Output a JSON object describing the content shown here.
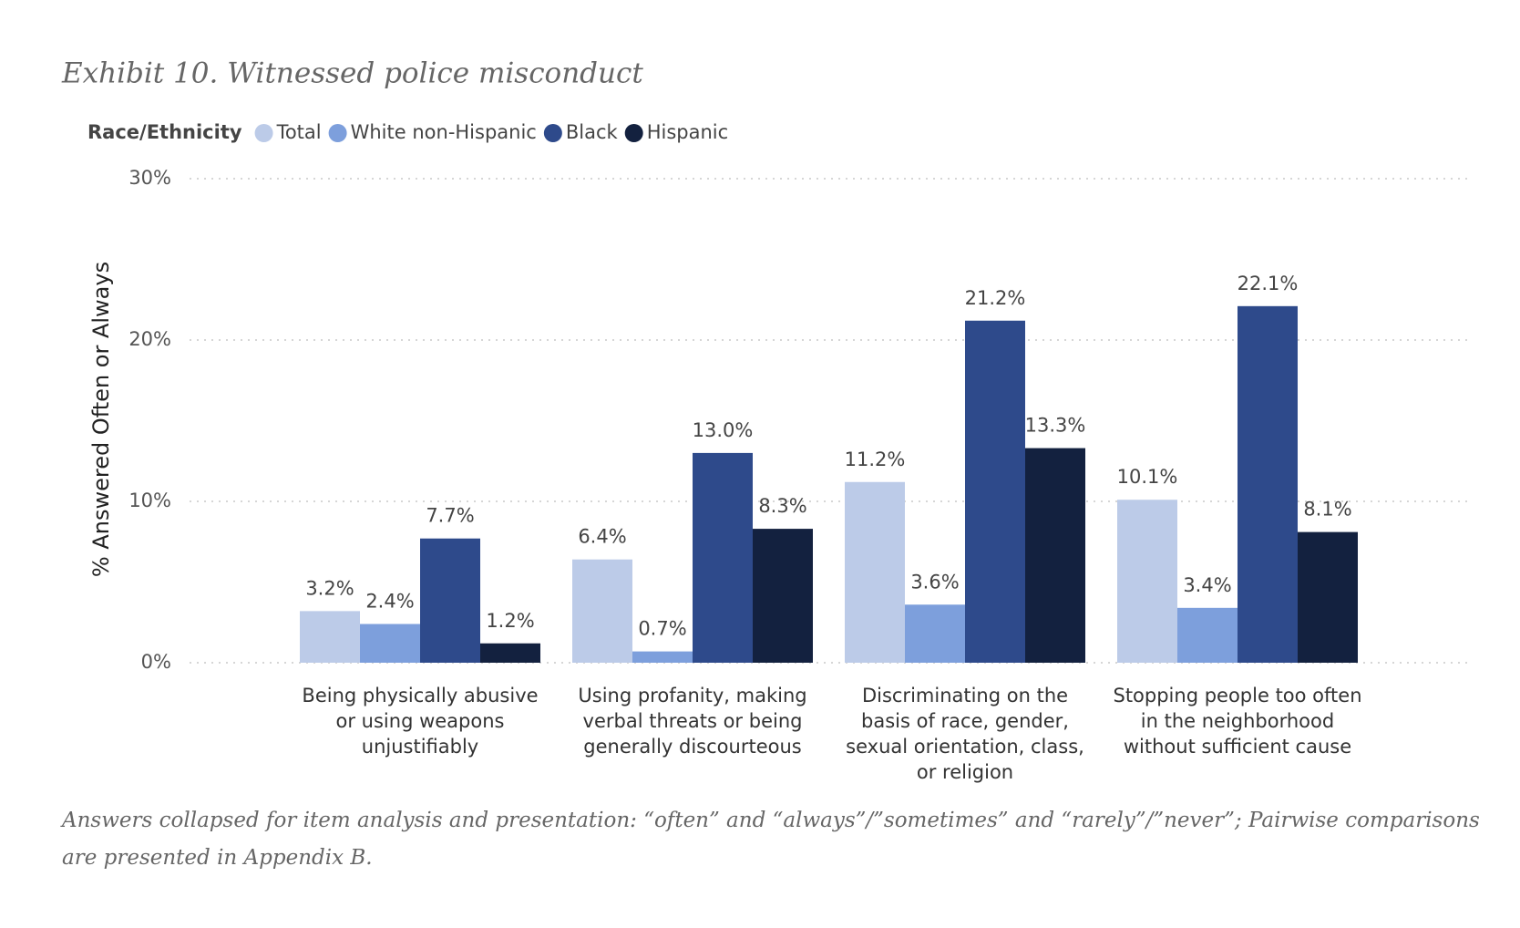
{
  "chart_data": {
    "type": "bar",
    "title": "Exhibit 10. Witnessed police misconduct",
    "legend_title": "Race/Ethnicity",
    "y_label": "% Answered Often or Always",
    "categories": [
      [
        "Being physically abusive",
        "or using weapons",
        "unjustifiably"
      ],
      [
        "Using profanity, making",
        "verbal threats or being",
        "generally discourteous"
      ],
      [
        "Discriminating on the",
        "basis of race, gender,",
        "sexual orientation, class,",
        "or religion"
      ],
      [
        "Stopping people too often",
        "in the neighborhood",
        "without sufficient cause"
      ]
    ],
    "series": [
      {
        "name": "Total",
        "color": "#bccbe8",
        "values": [
          3.2,
          6.4,
          11.2,
          10.1
        ],
        "value_labels": [
          "3.2%",
          "6.4%",
          "11.2%",
          "10.1%"
        ]
      },
      {
        "name": "White non-Hispanic",
        "color": "#7d9fdc",
        "values": [
          2.4,
          0.7,
          3.6,
          3.4
        ],
        "value_labels": [
          "2.4%",
          "0.7%",
          "3.6%",
          "3.4%"
        ]
      },
      {
        "name": "Black",
        "color": "#2e4a8b",
        "values": [
          7.7,
          13.0,
          21.2,
          22.1
        ],
        "value_labels": [
          "7.7%",
          "13.0%",
          "21.2%",
          "22.1%"
        ]
      },
      {
        "name": "Hispanic",
        "color": "#13213f",
        "values": [
          1.2,
          8.3,
          13.3,
          8.1
        ],
        "value_labels": [
          "1.2%",
          "8.3%",
          "13.3%",
          "8.1%"
        ]
      }
    ],
    "ylim": [
      0,
      30
    ],
    "yticks": [
      {
        "value": 0,
        "label": "0%"
      },
      {
        "value": 10,
        "label": "10%"
      },
      {
        "value": 20,
        "label": "20%"
      },
      {
        "value": 30,
        "label": "30%"
      }
    ],
    "grid": true,
    "note": [
      "Answers collapsed for item analysis and presentation: “often” and “always”/”sometimes” and “rarely”/”never”; Pairwise comparisons",
      "are presented in Appendix B."
    ]
  }
}
